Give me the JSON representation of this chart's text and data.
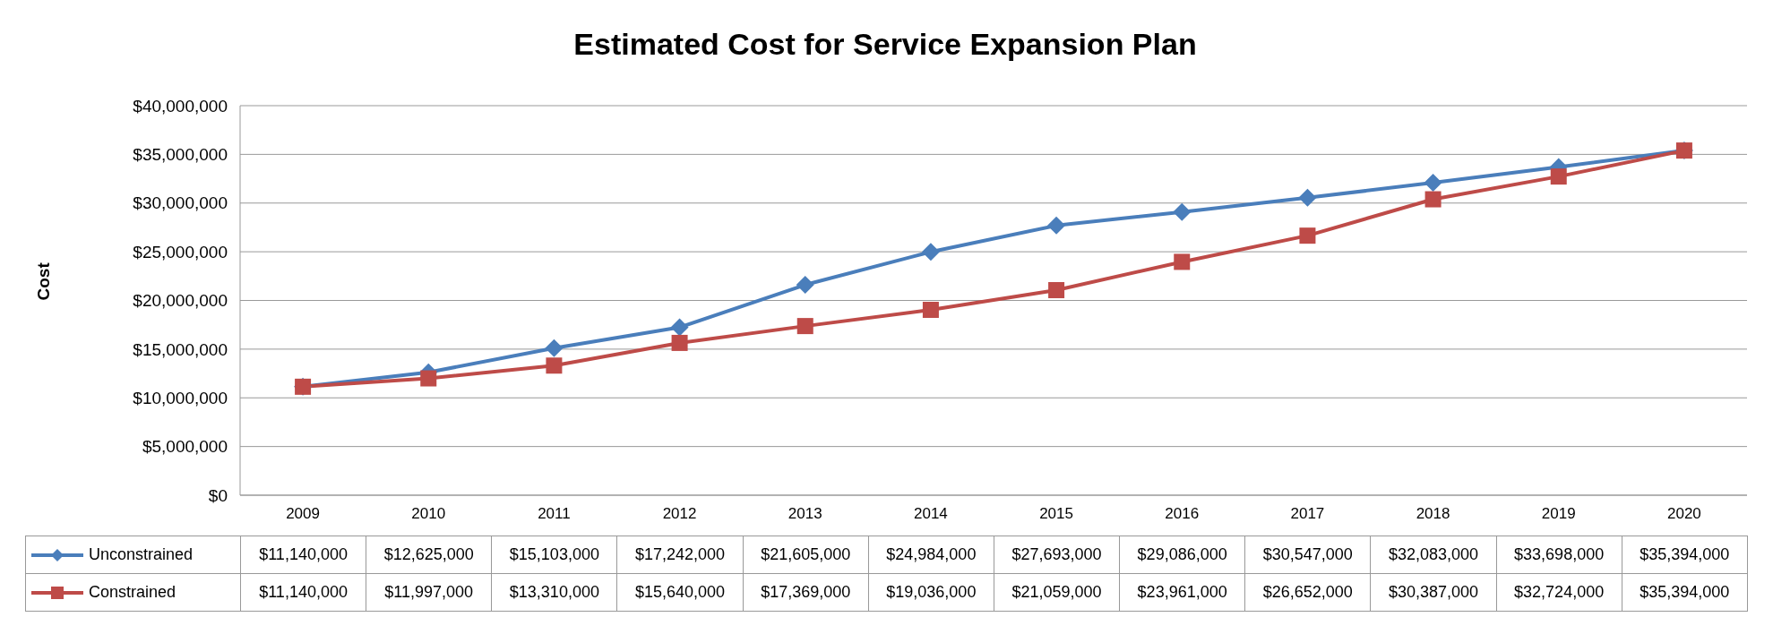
{
  "chart_data": {
    "type": "line",
    "title": "Estimated Cost for Service Expansion Plan",
    "ylabel": "Cost",
    "categories": [
      "2009",
      "2010",
      "2011",
      "2012",
      "2013",
      "2014",
      "2015",
      "2016",
      "2017",
      "2018",
      "2019",
      "2020"
    ],
    "series": [
      {
        "name": "Unconstrained",
        "color": "#4a7ebb",
        "marker": "diamond",
        "values": [
          11140000,
          12625000,
          15103000,
          17242000,
          21605000,
          24984000,
          27693000,
          29086000,
          30547000,
          32083000,
          33698000,
          35394000
        ],
        "value_labels": [
          "$11,140,000",
          "$12,625,000",
          "$15,103,000",
          "$17,242,000",
          "$21,605,000",
          "$24,984,000",
          "$27,693,000",
          "$29,086,000",
          "$30,547,000",
          "$32,083,000",
          "$33,698,000",
          "$35,394,000"
        ]
      },
      {
        "name": "Constrained",
        "color": "#be4b48",
        "marker": "square",
        "values": [
          11140000,
          11997000,
          13310000,
          15640000,
          17369000,
          19036000,
          21059000,
          23961000,
          26652000,
          30387000,
          32724000,
          35394000
        ],
        "value_labels": [
          "$11,140,000",
          "$11,997,000",
          "$13,310,000",
          "$15,640,000",
          "$17,369,000",
          "$19,036,000",
          "$21,059,000",
          "$23,961,000",
          "$26,652,000",
          "$30,387,000",
          "$32,724,000",
          "$35,394,000"
        ]
      }
    ],
    "ylim": [
      0,
      40000000
    ],
    "yticks": [
      {
        "value": 0,
        "label": "$0"
      },
      {
        "value": 5000000,
        "label": "$5,000,000"
      },
      {
        "value": 10000000,
        "label": "$10,000,000"
      },
      {
        "value": 15000000,
        "label": "$15,000,000"
      },
      {
        "value": 20000000,
        "label": "$20,000,000"
      },
      {
        "value": 25000000,
        "label": "$25,000,000"
      },
      {
        "value": 30000000,
        "label": "$30,000,000"
      },
      {
        "value": 35000000,
        "label": "$35,000,000"
      },
      {
        "value": 40000000,
        "label": "$40,000,000"
      }
    ],
    "grid": "y",
    "legend": "bottom left",
    "line_style": "solid"
  }
}
